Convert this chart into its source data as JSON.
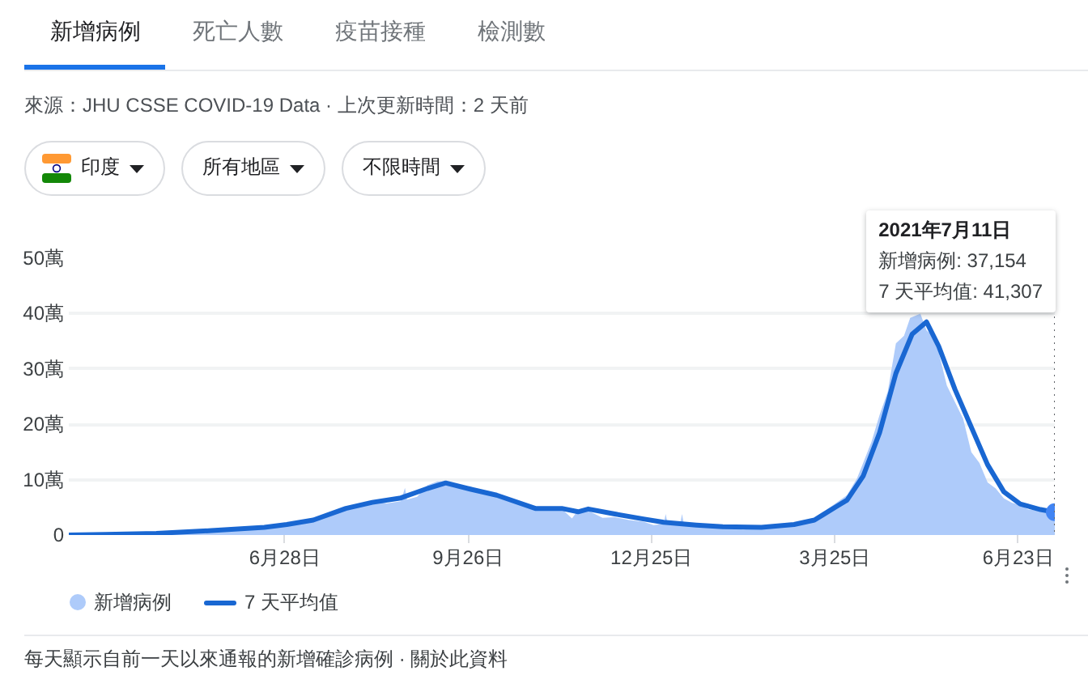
{
  "chart_data": {
    "type": "line",
    "title": "新增病例",
    "subtitle": "來源：JHU CSSE COVID-19 Data · 上次更新時間：2 天前",
    "annotations": [
      "死亡人數",
      "疫苗接種",
      "檢測數",
      "印度",
      "所有地區",
      "不限時間",
      "2021年7月11日",
      "新增病例: 37,154",
      "7 天平均值: 41,307",
      "每天顯示自前一天以來通報的新增確診病例 · 關於此資料"
    ],
    "xlim": [
      "2020-03-14",
      "2021-07-11"
    ],
    "xticks": [
      {
        "value": "2020-06-28",
        "label": "6月28日"
      },
      {
        "value": "2020-09-26",
        "label": "9月26日"
      },
      {
        "value": "2020-12-25",
        "label": "12月25日"
      },
      {
        "value": "2021-03-25",
        "label": "3月25日"
      },
      {
        "value": "2021-06-23",
        "label": "6月23日"
      }
    ],
    "ylim": [
      0,
      50
    ],
    "yticks": [
      0,
      {
        "value": 10,
        "label": "10萬"
      },
      {
        "value": 20,
        "label": "20萬"
      },
      {
        "value": 30,
        "label": "30萬"
      },
      {
        "value": 40,
        "label": "40萬"
      },
      {
        "value": 50,
        "label": "50萬"
      }
    ],
    "grid": "y",
    "legend": "bottom",
    "ref_lines": [
      {
        "axis": "x",
        "value": "2021-07-11",
        "color": "#5f6368",
        "line_style": "dotted"
      }
    ],
    "series": [
      {
        "name": "新增病例",
        "type": "area",
        "color": "#aecbfa",
        "x": [
          "2020-03-14",
          "2020-04-01",
          "2020-04-26",
          "2020-05-23",
          "2020-06-18",
          "2020-06-29",
          "2020-07-12",
          "2020-07-20",
          "2020-07-28",
          "2020-08-03",
          "2020-08-10",
          "2020-08-17",
          "2020-08-24",
          "2020-08-26",
          "2020-08-27",
          "2020-09-01",
          "2020-09-06",
          "2020-09-11",
          "2020-09-16",
          "2020-09-21",
          "2020-09-27",
          "2020-10-04",
          "2020-10-10",
          "2020-10-17",
          "2020-10-24",
          "2020-10-29",
          "2020-11-05",
          "2020-11-11",
          "2020-11-16",
          "2020-11-19",
          "2020-11-24",
          "2020-12-01",
          "2020-12-07",
          "2020-12-14",
          "2020-12-21",
          "2020-12-26",
          "2020-12-31",
          "2021-01-01",
          "2021-01-02",
          "2021-01-08",
          "2021-01-09",
          "2021-01-10",
          "2021-01-16",
          "2021-01-29",
          "2021-02-08",
          "2021-02-17",
          "2021-02-25",
          "2021-03-05",
          "2021-03-15",
          "2021-03-21",
          "2021-03-26",
          "2021-03-31",
          "2021-04-05",
          "2021-04-08",
          "2021-04-12",
          "2021-04-16",
          "2021-04-20",
          "2021-04-24",
          "2021-04-28",
          "2021-05-01",
          "2021-05-06",
          "2021-05-09",
          "2021-05-12",
          "2021-05-15",
          "2021-05-19",
          "2021-05-23",
          "2021-05-27",
          "2021-05-31",
          "2021-06-04",
          "2021-06-08",
          "2021-06-12",
          "2021-06-16",
          "2021-06-20",
          "2021-06-24",
          "2021-06-28",
          "2021-07-04",
          "2021-07-08",
          "2021-07-11"
        ],
        "values": [
          0,
          0.1,
          0.3,
          0.8,
          1.4,
          2,
          2.9,
          3.8,
          4.9,
          5.2,
          6.2,
          5.7,
          6.1,
          8.5,
          6.4,
          6.9,
          9,
          9.7,
          9.7,
          8.6,
          8.8,
          7.5,
          7.4,
          6.2,
          5.4,
          4.9,
          5,
          4.7,
          3,
          4.5,
          4.4,
          3.1,
          3.2,
          2.7,
          2.4,
          1.8,
          2,
          3.8,
          1.9,
          1.8,
          3.8,
          1.8,
          1.6,
          1.3,
          1,
          1.2,
          1.7,
          1.7,
          2.6,
          4.6,
          5.9,
          7.2,
          10.3,
          13.1,
          16.8,
          21.7,
          25.9,
          34.6,
          36,
          39.2,
          40,
          37,
          36,
          33,
          27,
          24,
          21,
          15,
          13,
          9.5,
          8.4,
          6.6,
          5.8,
          5.4,
          4.6,
          4.4,
          4.3,
          3.7154
        ]
      },
      {
        "name": "7 天平均值",
        "color": "#1967d2",
        "x": [
          "2020-03-14",
          "2020-04-01",
          "2020-04-26",
          "2020-05-23",
          "2020-06-18",
          "2020-06-29",
          "2020-07-12",
          "2020-07-28",
          "2020-08-10",
          "2020-08-24",
          "2020-09-06",
          "2020-09-15",
          "2020-09-27",
          "2020-10-10",
          "2020-10-29",
          "2020-11-11",
          "2020-11-19",
          "2020-11-24",
          "2020-12-07",
          "2020-12-21",
          "2020-12-31",
          "2021-01-16",
          "2021-01-29",
          "2021-02-17",
          "2021-03-05",
          "2021-03-15",
          "2021-03-26",
          "2021-03-31",
          "2021-04-08",
          "2021-04-16",
          "2021-04-24",
          "2021-05-02",
          "2021-05-09",
          "2021-05-15",
          "2021-05-23",
          "2021-05-31",
          "2021-06-08",
          "2021-06-16",
          "2021-06-24",
          "2021-07-04",
          "2021-07-11"
        ],
        "values": [
          0,
          0.1,
          0.3,
          0.8,
          1.4,
          1.9,
          2.7,
          4.8,
          5.9,
          6.7,
          8.4,
          9.4,
          8.3,
          7.2,
          4.8,
          4.8,
          4.2,
          4.7,
          3.8,
          2.9,
          2.3,
          1.8,
          1.5,
          1.4,
          1.9,
          2.7,
          5.2,
          6.3,
          10.7,
          18.5,
          29.2,
          36.3,
          38.5,
          34.1,
          26.3,
          19.5,
          12.7,
          7.8,
          5.6,
          4.6,
          4.1307
        ]
      },
      {
        "type": "scatter",
        "color": "#4285f4",
        "x": [
          "2021-07-11"
        ],
        "values": [
          4.1307
        ]
      }
    ]
  }
}
